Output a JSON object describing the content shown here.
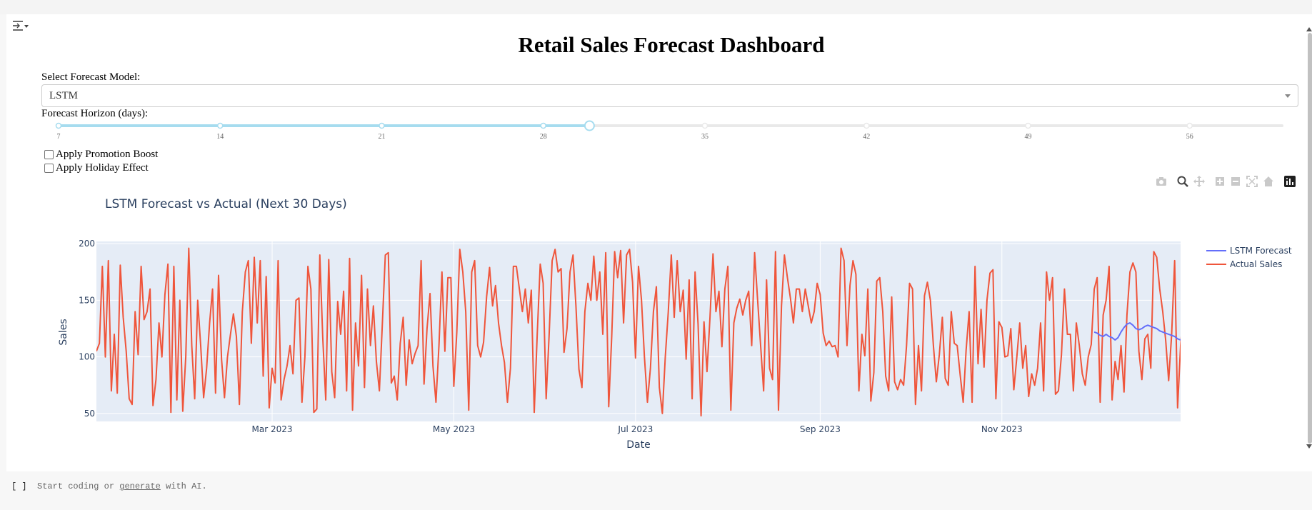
{
  "dashboard": {
    "title": "Retail Sales Forecast Dashboard",
    "model_label": "Select Forecast Model:",
    "model_value": "LSTM",
    "horizon_label": "Forecast Horizon (days):",
    "slider_marks": [
      "7",
      "14",
      "21",
      "28",
      "35",
      "42",
      "49",
      "56"
    ],
    "slider_value": 30,
    "slider_min": 7,
    "slider_max": 60,
    "promo_label": "Apply Promotion Boost",
    "promo_checked": false,
    "holiday_label": "Apply Holiday Effect",
    "holiday_checked": false
  },
  "footer": {
    "brackets": "[ ]",
    "pre": "Start coding or",
    "link": "generate",
    "post": "with AI."
  },
  "colors": {
    "forecast": "#636efa",
    "actual": "#ef553b",
    "plot_bg": "#e5ecf6",
    "slider_active": "#a6dcef"
  },
  "modebar_icons": [
    "camera-icon",
    "zoom-icon",
    "pan-icon",
    "zoom-in-icon",
    "zoom-out-icon",
    "autoscale-icon",
    "reset-axes-icon",
    "plotly-logo-icon"
  ],
  "chart_data": {
    "type": "line",
    "title": "LSTM Forecast vs Actual (Next 30 Days)",
    "xlabel": "Date",
    "ylabel": "Sales",
    "x_range": [
      "2023-01-01",
      "2023-12-31"
    ],
    "x_ticks": [
      {
        "date": "2023-03-01",
        "label": "Mar 2023"
      },
      {
        "date": "2023-05-01",
        "label": "May 2023"
      },
      {
        "date": "2023-07-01",
        "label": "Jul 2023"
      },
      {
        "date": "2023-09-01",
        "label": "Sep 2023"
      },
      {
        "date": "2023-11-01",
        "label": "Nov 2023"
      }
    ],
    "ylim": [
      43,
      202
    ],
    "y_ticks": [
      50,
      100,
      150,
      200
    ],
    "grid": true,
    "legend_position": "right",
    "series": [
      {
        "name": "Actual Sales",
        "color": "#ef553b",
        "x_start": "2023-01-01",
        "x_step_days": 1,
        "values": [
          105,
          112,
          180,
          100,
          185,
          70,
          120,
          68,
          181,
          135,
          105,
          63,
          58,
          140,
          102,
          180,
          133,
          140,
          160,
          57,
          80,
          130,
          100,
          155,
          182,
          51,
          180,
          62,
          150,
          52,
          100,
          196,
          110,
          63,
          150,
          110,
          64,
          90,
          130,
          160,
          68,
          172,
          98,
          64,
          100,
          120,
          138,
          118,
          58,
          140,
          175,
          185,
          112,
          188,
          130,
          185,
          83,
          171,
          55,
          90,
          77,
          185,
          62,
          80,
          92,
          110,
          85,
          150,
          152,
          60,
          100,
          180,
          160,
          51,
          54,
          190,
          117,
          62,
          186,
          87,
          64,
          149,
          120,
          158,
          70,
          187,
          53,
          130,
          92,
          172,
          73,
          160,
          110,
          145,
          96,
          70,
          130,
          190,
          192,
          77,
          83,
          62,
          112,
          135,
          75,
          115,
          94,
          103,
          110,
          185,
          76,
          125,
          156,
          92,
          60,
          110,
          175,
          105,
          170,
          170,
          74,
          122,
          195,
          175,
          140,
          53,
          175,
          185,
          110,
          100,
          113,
          153,
          179,
          145,
          163,
          130,
          110,
          95,
          60,
          90,
          180,
          180,
          160,
          140,
          160,
          130,
          159,
          51,
          120,
          182,
          165,
          63,
          120,
          185,
          195,
          175,
          178,
          104,
          125,
          175,
          190,
          145,
          89,
          73,
          140,
          165,
          150,
          189,
          150,
          175,
          120,
          192,
          56,
          118,
          193,
          170,
          194,
          130,
          190,
          195,
          166,
          99,
          180,
          150,
          100,
          60,
          90,
          140,
          162,
          73,
          50,
          100,
          140,
          190,
          135,
          185,
          140,
          159,
          98,
          168,
          63,
          175,
          129,
          48,
          131,
          87,
          135,
          191,
          140,
          158,
          109,
          160,
          180,
          53,
          130,
          143,
          151,
          137,
          150,
          158,
          110,
          192,
          150,
          110,
          70,
          168,
          90,
          80,
          193,
          53,
          145,
          190,
          170,
          152,
          130,
          160,
          160,
          140,
          160,
          145,
          130,
          140,
          165,
          155,
          121,
          110,
          114,
          109,
          110,
          100,
          196,
          185,
          110,
          163,
          185,
          173,
          70,
          120,
          101,
          160,
          61,
          86,
          167,
          170,
          140,
          83,
          70,
          153,
          78,
          71,
          80,
          75,
          110,
          165,
          160,
          58,
          110,
          70,
          154,
          166,
          150,
          110,
          78,
          102,
          135,
          81,
          75,
          140,
          112,
          110,
          84,
          60,
          106,
          140,
          60,
          180,
          94,
          142,
          91,
          150,
          174,
          177,
          63,
          131,
          126,
          100,
          101,
          125,
          71,
          99,
          130,
          90,
          110,
          65,
          85,
          75,
          90,
          130,
          70,
          175,
          150,
          170,
          67,
          70,
          102,
          160,
          120,
          120,
          70,
          130,
          110,
          85,
          75,
          100,
          111,
          160,
          170,
          60,
          137,
          150,
          180,
          62,
          96,
          80,
          110,
          69,
          137,
          175,
          183,
          175,
          105,
          80,
          116,
          120,
          90,
          193,
          188,
          160,
          140,
          115,
          79,
          120,
          185,
          55,
          110,
          145,
          170,
          135,
          120,
          130,
          160,
          180,
          100,
          160,
          175,
          145,
          110
        ]
      },
      {
        "name": "LSTM Forecast",
        "color": "#636efa",
        "x_start": "2023-12-02",
        "x_step_days": 1,
        "values": [
          122,
          121,
          119,
          118,
          120,
          118,
          117,
          115,
          117,
          122,
          126,
          129,
          130,
          128,
          125,
          124,
          125,
          127,
          128,
          127,
          126,
          125,
          123,
          122,
          121,
          120,
          119,
          118,
          116,
          115
        ]
      }
    ]
  }
}
